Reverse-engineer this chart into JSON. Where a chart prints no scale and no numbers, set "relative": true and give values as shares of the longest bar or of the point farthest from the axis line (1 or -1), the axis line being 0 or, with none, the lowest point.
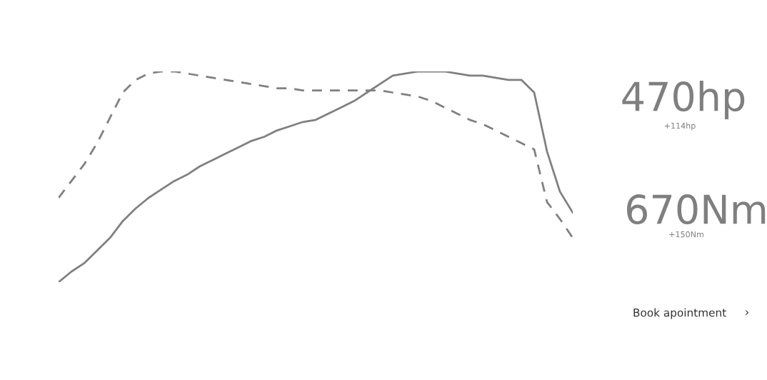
{
  "chart_data": {
    "type": "line",
    "relative": true,
    "legend": false,
    "marker": "none",
    "annotations": [
      "470hp",
      "+114hp",
      "670Nm",
      "+150Nm",
      "Book apointment",
      "›"
    ],
    "categories": [
      null,
      null,
      null,
      null,
      null,
      null,
      null,
      null,
      null,
      null,
      null,
      null,
      null,
      null,
      null,
      null,
      null,
      null,
      null,
      null,
      null,
      null,
      null,
      null,
      null,
      null,
      null,
      null,
      null,
      null,
      null,
      null,
      null,
      null,
      null,
      null,
      null,
      null,
      null,
      null,
      null
    ],
    "series": [
      {
        "color": "#808080",
        "line_style": "solid",
        "values": [
          0,
          0.05,
          0.09,
          0.15,
          0.21,
          0.29,
          0.35,
          0.4,
          0.44,
          0.48,
          0.51,
          0.55,
          0.58,
          0.61,
          0.64,
          0.67,
          0.69,
          0.72,
          0.74,
          0.76,
          0.77,
          0.8,
          0.83,
          0.86,
          0.9,
          0.94,
          0.98,
          0.99,
          1.0,
          1.0,
          1.0,
          0.99,
          0.98,
          0.98,
          0.97,
          0.96,
          0.96,
          0.9,
          0.62,
          0.43,
          0.33
        ]
      },
      {
        "color": "#808080",
        "line_style": "dashed",
        "values": [
          0.4,
          0.48,
          0.56,
          0.66,
          0.78,
          0.9,
          0.96,
          0.99,
          1.0,
          1.0,
          0.99,
          0.98,
          0.97,
          0.96,
          0.95,
          0.94,
          0.93,
          0.92,
          0.92,
          0.91,
          0.91,
          0.91,
          0.91,
          0.91,
          0.91,
          0.91,
          0.9,
          0.89,
          0.88,
          0.86,
          0.83,
          0.8,
          0.77,
          0.75,
          0.72,
          0.69,
          0.66,
          0.63,
          0.38,
          0.3,
          0.21
        ]
      }
    ]
  }
}
